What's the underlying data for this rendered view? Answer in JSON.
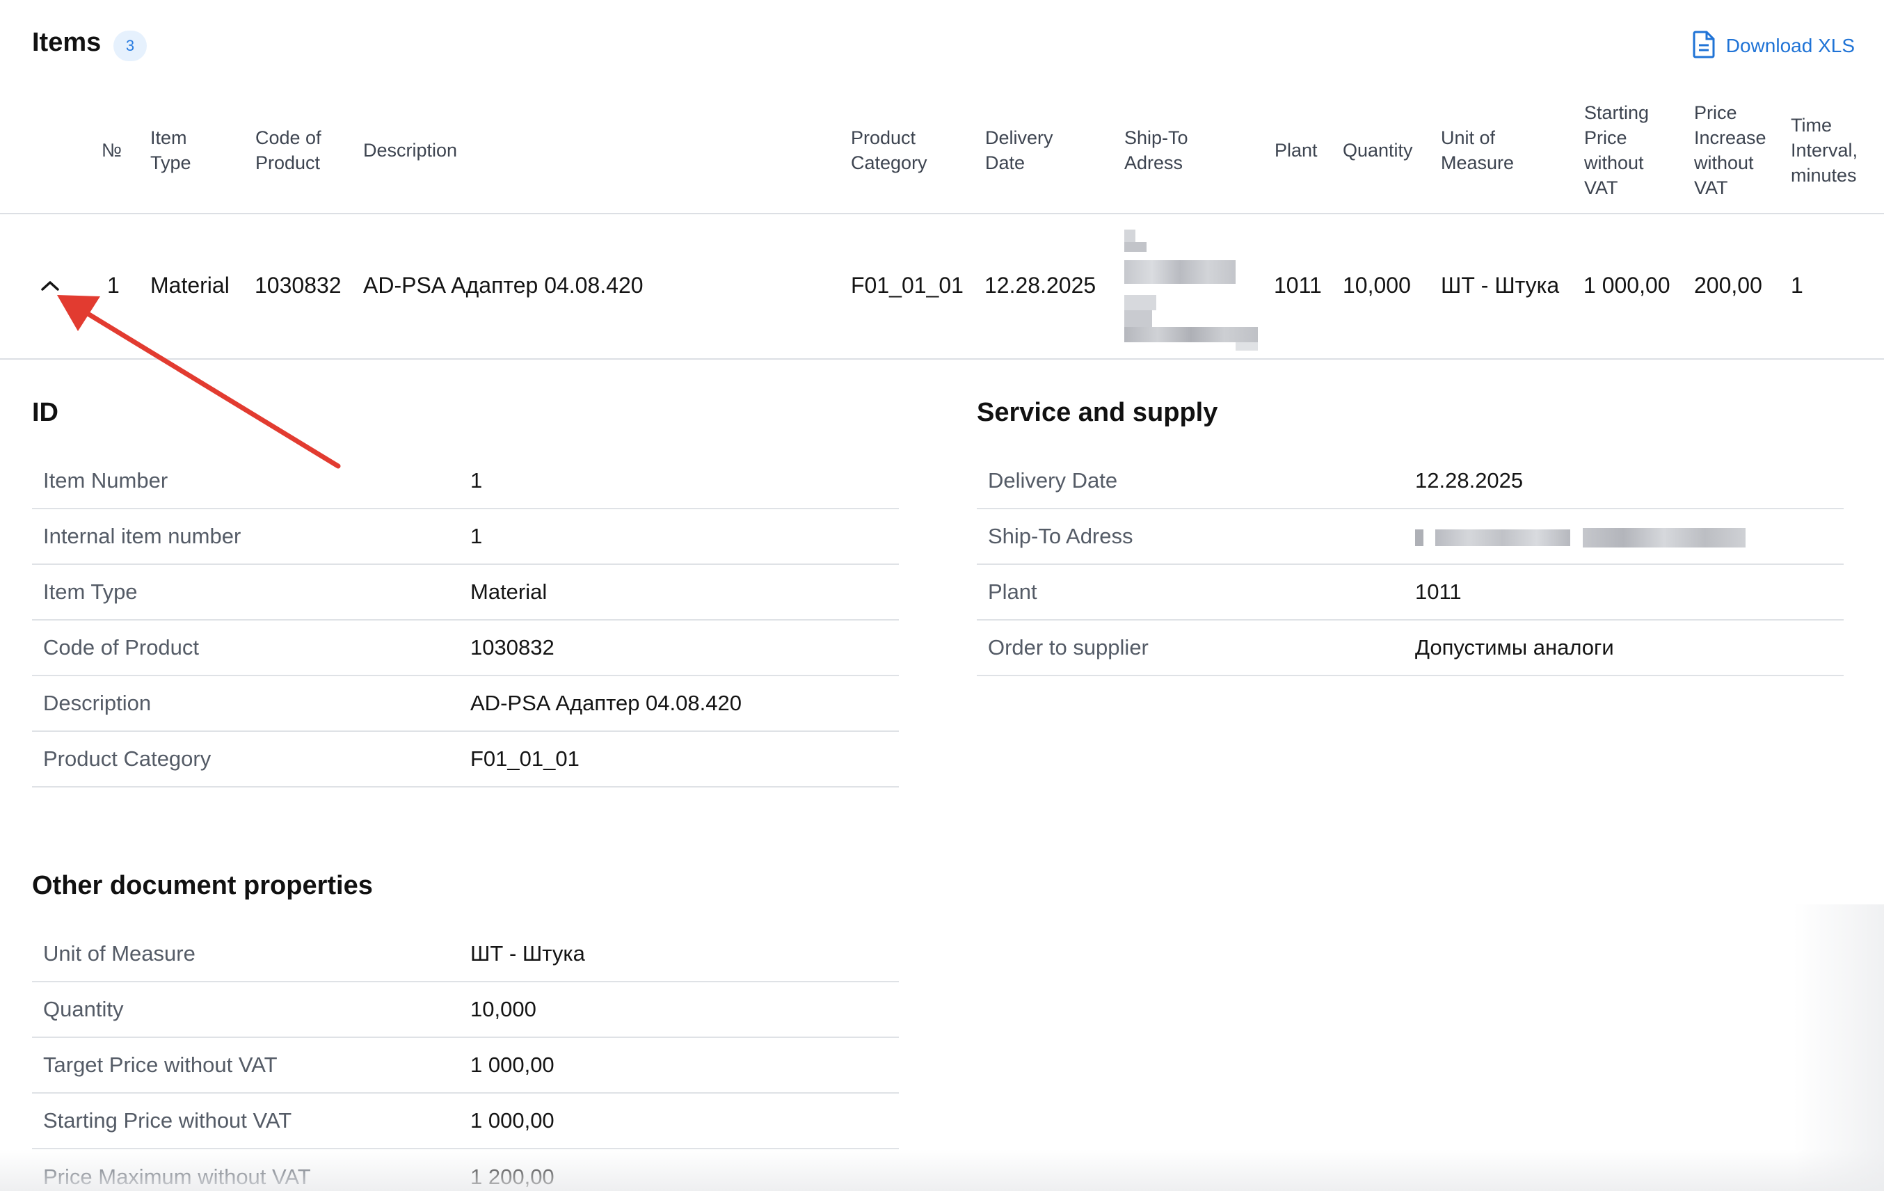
{
  "header": {
    "title": "Items",
    "count": "3",
    "download_label": "Download XLS"
  },
  "table": {
    "columns": [
      {
        "key": "no",
        "label": "№"
      },
      {
        "key": "item_type",
        "label": "Item\nType"
      },
      {
        "key": "code",
        "label": "Code of\nProduct"
      },
      {
        "key": "description",
        "label": "Description"
      },
      {
        "key": "category",
        "label": "Product\nCategory"
      },
      {
        "key": "delivery",
        "label": "Delivery\nDate"
      },
      {
        "key": "ship_to",
        "label": "Ship-To\nAdress"
      },
      {
        "key": "plant",
        "label": "Plant"
      },
      {
        "key": "quantity",
        "label": "Quantity"
      },
      {
        "key": "uom",
        "label": "Unit of\nMeasure"
      },
      {
        "key": "start_price",
        "label": "Starting\nPrice\nwithout\nVAT"
      },
      {
        "key": "price_increase",
        "label": "Price\nIncrease\nwithout\nVAT"
      },
      {
        "key": "time_interval",
        "label": "Time\nInterval,\nminutes"
      }
    ],
    "row": {
      "no": "1",
      "item_type": "Material",
      "code": "1030832",
      "description": "AD-PSA Адаптер 04.08.420",
      "category": "F01_01_01",
      "delivery": "12.28.2025",
      "plant": "1011",
      "quantity": "10,000",
      "uom": "ШТ - Штука",
      "start_price": "1 000,00",
      "price_increase": "200,00",
      "time_interval": "1"
    }
  },
  "sections": {
    "id": {
      "title": "ID",
      "rows": [
        {
          "label": "Item Number",
          "value": "1"
        },
        {
          "label": "Internal item number",
          "value": "1"
        },
        {
          "label": "Item Type",
          "value": "Material"
        },
        {
          "label": "Code of Product",
          "value": "1030832"
        },
        {
          "label": "Description",
          "value": "AD-PSA Адаптер 04.08.420"
        },
        {
          "label": "Product Category",
          "value": "F01_01_01"
        }
      ]
    },
    "service": {
      "title": "Service and supply",
      "rows": [
        {
          "label": "Delivery Date",
          "value": "12.28.2025"
        },
        {
          "label": "Ship-To Adress",
          "value": ""
        },
        {
          "label": "Plant",
          "value": "1011"
        },
        {
          "label": "Order to supplier",
          "value": "Допустимы аналоги"
        }
      ]
    },
    "other": {
      "title": "Other document properties",
      "rows": [
        {
          "label": "Unit of Measure",
          "value": "ШТ - Штука"
        },
        {
          "label": "Quantity",
          "value": "10,000"
        },
        {
          "label": "Target Price without VAT",
          "value": "1 000,00"
        },
        {
          "label": "Starting Price without VAT",
          "value": "1 000,00"
        },
        {
          "label": "Price Maximum without VAT",
          "value": "1 200,00"
        }
      ]
    }
  },
  "colors": {
    "accent": "#1f73d6",
    "badge_bg": "#e6f1fd",
    "annotation_arrow": "#e23b30"
  },
  "icons": {
    "download": "document-icon",
    "expand": "chevron-up-icon"
  }
}
